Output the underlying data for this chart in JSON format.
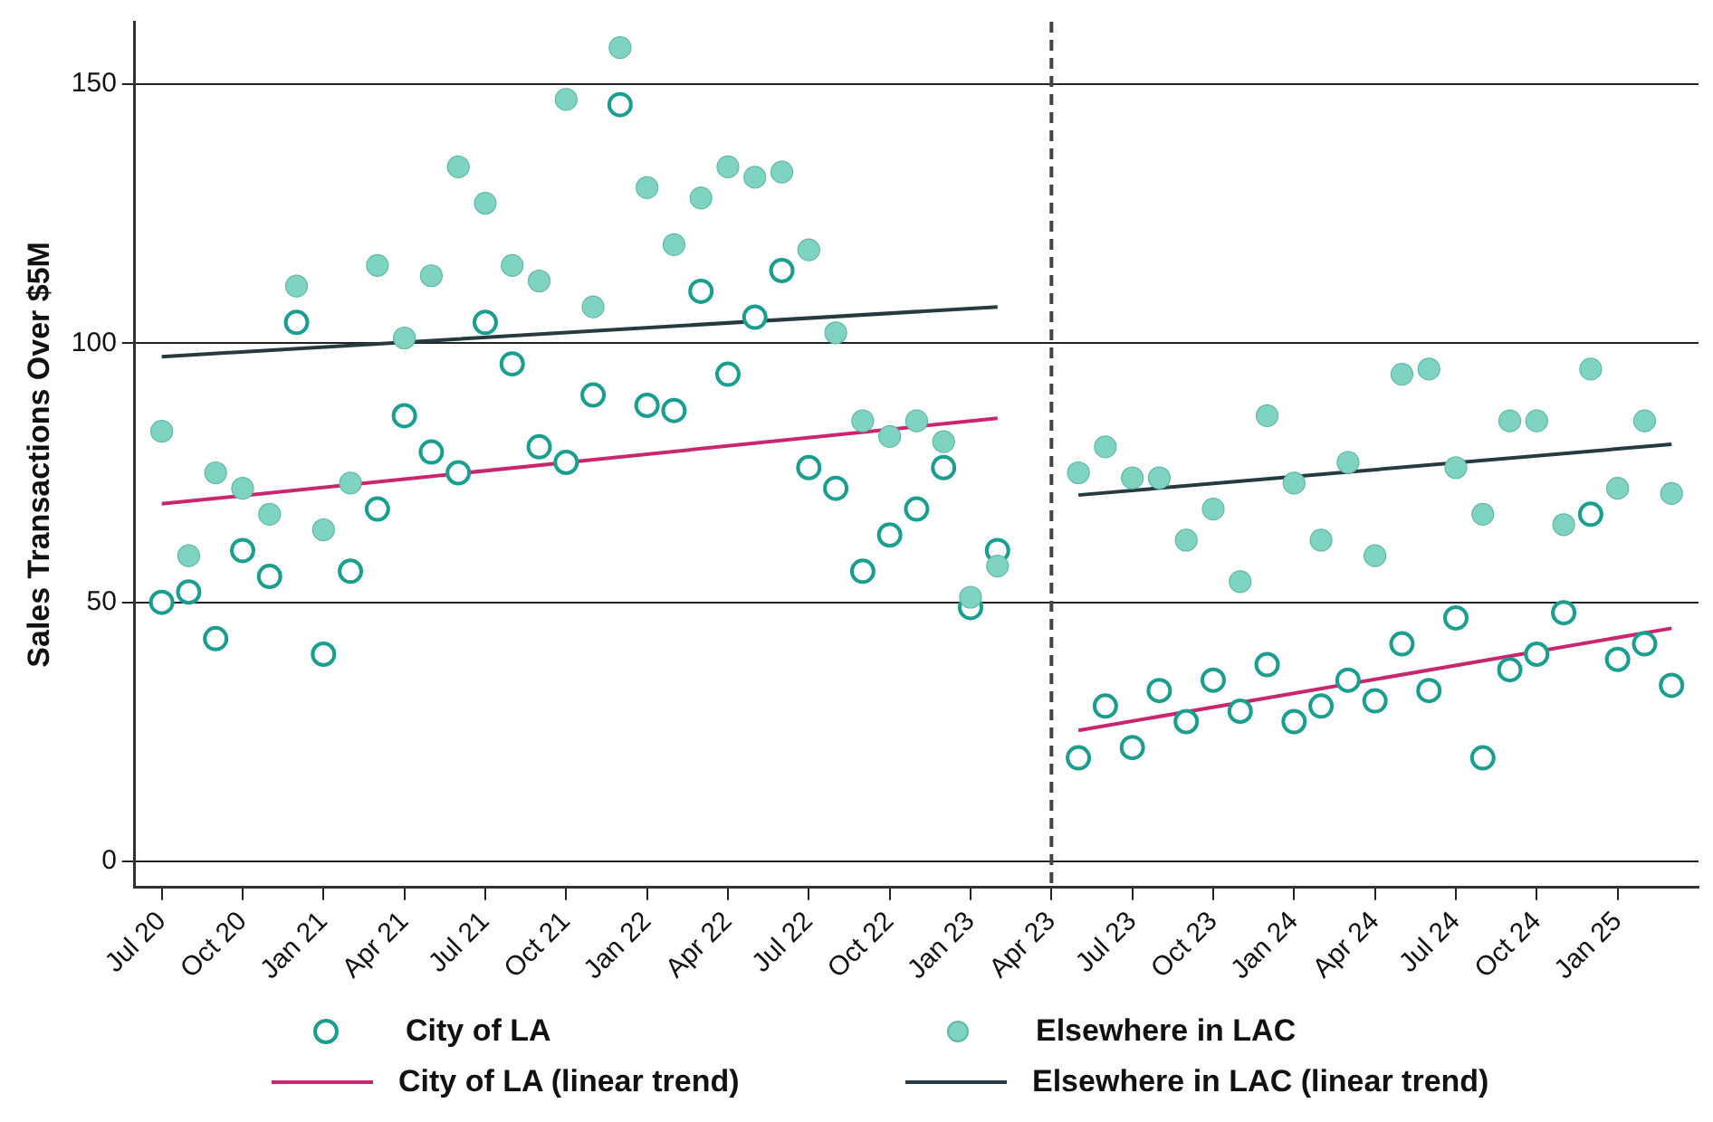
{
  "chart_data": {
    "type": "scatter",
    "ylabel": "Sales Transactions Over $5M",
    "x": [
      "2020-07",
      "2020-08",
      "2020-09",
      "2020-10",
      "2020-11",
      "2020-12",
      "2021-01",
      "2021-02",
      "2021-03",
      "2021-04",
      "2021-05",
      "2021-06",
      "2021-07",
      "2021-08",
      "2021-09",
      "2021-10",
      "2021-11",
      "2021-12",
      "2022-01",
      "2022-02",
      "2022-03",
      "2022-04",
      "2022-05",
      "2022-06",
      "2022-07",
      "2022-08",
      "2022-09",
      "2022-10",
      "2022-11",
      "2022-12",
      "2023-01",
      "2023-02",
      "2023-03",
      "2023-04",
      "2023-05",
      "2023-06",
      "2023-07",
      "2023-08",
      "2023-09",
      "2023-10",
      "2023-11",
      "2023-12",
      "2024-01",
      "2024-02",
      "2024-03",
      "2024-04",
      "2024-05",
      "2024-06",
      "2024-07",
      "2024-08",
      "2024-09",
      "2024-10",
      "2024-11",
      "2024-12",
      "2025-01",
      "2025-02",
      "2025-03"
    ],
    "series": [
      {
        "name": "City of LA",
        "color": "#1a9e8f",
        "marker": "circle",
        "values": [
          50,
          52,
          43,
          60,
          55,
          104,
          40,
          56,
          68,
          86,
          79,
          75,
          104,
          96,
          80,
          77,
          90,
          146,
          88,
          87,
          110,
          94,
          105,
          114,
          76,
          72,
          56,
          63,
          68,
          76,
          49,
          60,
          null,
          null,
          20,
          30,
          22,
          33,
          27,
          35,
          29,
          38,
          27,
          30,
          35,
          31,
          42,
          33,
          47,
          20,
          37,
          40,
          48,
          67,
          39,
          42,
          34
        ]
      },
      {
        "name": "Elsewhere in LAC",
        "color": "#7fd4c1",
        "marker": "circle",
        "values": [
          83,
          59,
          75,
          72,
          67,
          111,
          64,
          73,
          115,
          101,
          113,
          134,
          127,
          115,
          112,
          147,
          107,
          157,
          130,
          119,
          128,
          134,
          132,
          133,
          118,
          102,
          85,
          82,
          85,
          81,
          51,
          57,
          null,
          null,
          75,
          80,
          74,
          74,
          62,
          68,
          54,
          86,
          73,
          62,
          77,
          59,
          94,
          95,
          76,
          67,
          85,
          85,
          65,
          95,
          72,
          85,
          71
        ]
      },
      {
        "name": "City of LA (linear trend)",
        "type": "line",
        "color": "#c8266e",
        "marker": "none",
        "x": [
          "2020-07",
          "2023-02",
          "2023-03",
          "2023-05",
          "2025-03"
        ],
        "values": [
          69,
          85.5,
          null,
          25.3,
          45
        ]
      },
      {
        "name": "Elsewhere in LAC (linear trend)",
        "type": "line",
        "color": "#263a40",
        "marker": "none",
        "x": [
          "2020-07",
          "2023-02",
          "2023-03",
          "2023-05",
          "2025-03"
        ],
        "values": [
          97.4,
          107,
          null,
          70.7,
          80.5
        ]
      }
    ],
    "xlim": [
      "2020-06",
      "2025-04"
    ],
    "xticks": [
      {
        "value": "2020-07",
        "label": "Jul 20"
      },
      {
        "value": "2020-10",
        "label": "Oct 20"
      },
      {
        "value": "2021-01",
        "label": "Jan 21"
      },
      {
        "value": "2021-04",
        "label": "Apr 21"
      },
      {
        "value": "2021-07",
        "label": "Jul 21"
      },
      {
        "value": "2021-10",
        "label": "Oct 21"
      },
      {
        "value": "2022-01",
        "label": "Jan 22"
      },
      {
        "value": "2022-04",
        "label": "Apr 22"
      },
      {
        "value": "2022-07",
        "label": "Jul 22"
      },
      {
        "value": "2022-10",
        "label": "Oct 22"
      },
      {
        "value": "2023-01",
        "label": "Jan 23"
      },
      {
        "value": "2023-04",
        "label": "Apr 23"
      },
      {
        "value": "2023-07",
        "label": "Jul 23"
      },
      {
        "value": "2023-10",
        "label": "Oct 23"
      },
      {
        "value": "2024-01",
        "label": "Jan 24"
      },
      {
        "value": "2024-04",
        "label": "Apr 24"
      },
      {
        "value": "2024-07",
        "label": "Jul 24"
      },
      {
        "value": "2024-10",
        "label": "Oct 24"
      },
      {
        "value": "2025-01",
        "label": "Jan 25"
      }
    ],
    "ylim": [
      -5,
      162
    ],
    "yticks": [
      0,
      50,
      100,
      150
    ],
    "grid": "y",
    "legend": "bottom",
    "ref_lines": [
      {
        "axis": "x",
        "value": "2023-04",
        "color": "#444444",
        "line_style": "dashed"
      }
    ]
  }
}
